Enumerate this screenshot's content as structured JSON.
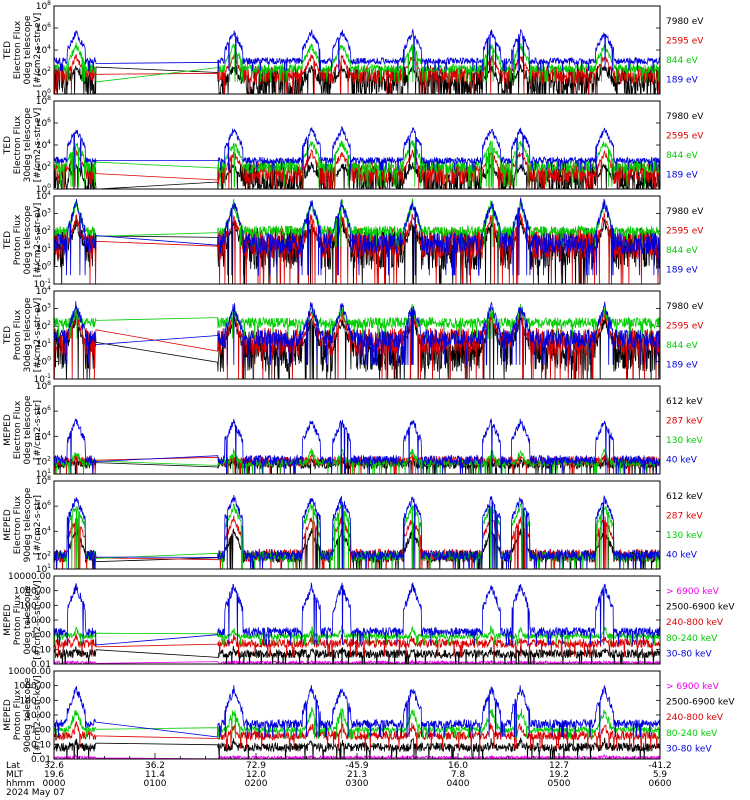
{
  "chart_data": {
    "type": "line",
    "x_tick_groups": {
      "labels": [
        "Lat",
        "MLT",
        "hhmm",
        "2024 May 07"
      ],
      "columns": [
        {
          "Lat": "32.6",
          "MLT": "19.6",
          "hhmm": "0000"
        },
        {
          "Lat": "36.2",
          "MLT": "11.4",
          "hhmm": "0100"
        },
        {
          "Lat": "72.9",
          "MLT": "12.0",
          "hhmm": "0200"
        },
        {
          "Lat": "-45.9",
          "MLT": "21.3",
          "hhmm": "0300"
        },
        {
          "Lat": "16.0",
          "MLT": "7.8",
          "hhmm": "0400"
        },
        {
          "Lat": "12.7",
          "MLT": "19.2",
          "hhmm": "0500"
        },
        {
          "Lat": "-41.2",
          "MLT": "5.9",
          "hhmm": "0600"
        }
      ]
    },
    "xlim_hours": [
      0,
      6
    ],
    "data_gap_hours": [
      0.42,
      1.62
    ],
    "panels": [
      {
        "ylabel": [
          "TED",
          "Electron Flux",
          "0deg telescope",
          "[#/cm2-s-str-eV]"
        ],
        "yscale": "log",
        "ylim_exp": [
          0,
          8
        ],
        "tick_exps": [
          0,
          2,
          4,
          6,
          8
        ],
        "series": [
          {
            "name": "7980 eV",
            "color": "#000000",
            "level": 1.0,
            "spread": 1.6,
            "peak": 2.4
          },
          {
            "name": "2595 eV",
            "color": "#dd0000",
            "level": 1.7,
            "spread": 0.8,
            "peak": 3.4
          },
          {
            "name": "844 eV",
            "color": "#00cc00",
            "level": 2.3,
            "spread": 0.4,
            "peak": 4.4
          },
          {
            "name": "189 eV",
            "color": "#0000dd",
            "level": 3.0,
            "spread": 0.3,
            "peak": 5.6
          }
        ]
      },
      {
        "ylabel": [
          "TED",
          "Electron Flux",
          "30deg telescope",
          "[#/cm2-s-str-eV]"
        ],
        "yscale": "log",
        "ylim_exp": [
          0,
          8
        ],
        "tick_exps": [
          0,
          2,
          4,
          6,
          8
        ],
        "series": [
          {
            "name": "7980 eV",
            "color": "#000000",
            "level": 0.8,
            "spread": 1.5,
            "peak": 2.2
          },
          {
            "name": "2595 eV",
            "color": "#dd0000",
            "level": 1.4,
            "spread": 1.0,
            "peak": 3.3
          },
          {
            "name": "844 eV",
            "color": "#00cc00",
            "level": 2.0,
            "spread": 0.6,
            "peak": 4.2
          },
          {
            "name": "189 eV",
            "color": "#0000dd",
            "level": 2.6,
            "spread": 0.3,
            "peak": 5.4
          }
        ]
      },
      {
        "ylabel": [
          "TED",
          "Proton Flux",
          "0deg telescope",
          "[#/cm2-s-str-eV]"
        ],
        "yscale": "log",
        "ylim_exp": [
          -1,
          4
        ],
        "tick_exps": [
          -1,
          0,
          1,
          2,
          3,
          4
        ],
        "series": [
          {
            "name": "7980 eV",
            "color": "#000000",
            "level": 1.0,
            "spread": 1.2,
            "peak": 2.5
          },
          {
            "name": "2595 eV",
            "color": "#dd0000",
            "level": 1.3,
            "spread": 0.9,
            "peak": 2.8
          },
          {
            "name": "844 eV",
            "color": "#00cc00",
            "level": 2.0,
            "spread": 0.3,
            "peak": 3.6
          },
          {
            "name": "189 eV",
            "color": "#0000dd",
            "level": 1.3,
            "spread": 0.6,
            "peak": 3.6
          }
        ]
      },
      {
        "ylabel": [
          "TED",
          "Proton Flux",
          "30deg telescope",
          "[#/cm2-s-str-eV]"
        ],
        "yscale": "log",
        "ylim_exp": [
          -1,
          4
        ],
        "tick_exps": [
          -1,
          0,
          1,
          2,
          3,
          4
        ],
        "series": [
          {
            "name": "7980 eV",
            "color": "#000000",
            "level": 0.6,
            "spread": 1.2,
            "peak": 2.4
          },
          {
            "name": "2595 eV",
            "color": "#dd0000",
            "level": 1.1,
            "spread": 0.8,
            "peak": 2.7
          },
          {
            "name": "844 eV",
            "color": "#00cc00",
            "level": 2.2,
            "spread": 0.3,
            "peak": 3.0
          },
          {
            "name": "189 eV",
            "color": "#0000dd",
            "level": 1.3,
            "spread": 0.5,
            "peak": 3.2
          }
        ]
      },
      {
        "ylabel": [
          "MEPED",
          "Electron Flux",
          "0deg telescope",
          "[#/cm2-s-str]"
        ],
        "yscale": "log",
        "ylim_exp": [
          1,
          8
        ],
        "tick_exps": [
          1,
          2,
          4,
          6,
          8
        ],
        "series": [
          {
            "name": "612 keV",
            "color": "#000000",
            "level": 1.8,
            "spread": 0.4,
            "peak": 2.0
          },
          {
            "name": "287 keV",
            "color": "#dd0000",
            "level": 2.0,
            "spread": 0.4,
            "peak": 2.4
          },
          {
            "name": "130 keV",
            "color": "#00cc00",
            "level": 1.9,
            "spread": 0.3,
            "peak": 2.8
          },
          {
            "name": "40 keV",
            "color": "#0000dd",
            "level": 2.1,
            "spread": 0.4,
            "peak": 5.2
          }
        ]
      },
      {
        "ylabel": [
          "MEPED",
          "Electron Flux",
          "90deg telescope",
          "[#/cm2-s-str]"
        ],
        "yscale": "log",
        "ylim_exp": [
          1,
          8
        ],
        "tick_exps": [
          1,
          2,
          4,
          6,
          8
        ],
        "series": [
          {
            "name": "612 keV",
            "color": "#000000",
            "level": 2.0,
            "spread": 0.5,
            "peak": 4.0
          },
          {
            "name": "287 keV",
            "color": "#dd0000",
            "level": 2.1,
            "spread": 0.5,
            "peak": 5.0
          },
          {
            "name": "130 keV",
            "color": "#00cc00",
            "level": 2.0,
            "spread": 0.4,
            "peak": 6.0
          },
          {
            "name": "40 keV",
            "color": "#0000dd",
            "level": 2.1,
            "spread": 0.4,
            "peak": 6.6
          }
        ]
      },
      {
        "ylabel": [
          "MEPED",
          "Proton Flux",
          "0deg telescope",
          "[#/cm2-s-str-keV]"
        ],
        "yscale": "log",
        "ylim_exp": [
          -2,
          4
        ],
        "tick_exps": [
          -2,
          -1,
          0,
          1,
          2,
          3,
          4
        ],
        "tick_labels": [
          "0.01",
          "0.10",
          "1.00",
          "10.00",
          "100.00",
          "1000.00",
          "10000.00"
        ],
        "series": [
          {
            "name": "> 6900 keV",
            "color": "#ee00ee",
            "level": -1.9,
            "spread": 0.1,
            "peak": -1.9
          },
          {
            "name": "2500-6900 keV",
            "color": "#000000",
            "level": -1.3,
            "spread": 0.3,
            "peak": -1.0
          },
          {
            "name": "240-800 keV",
            "color": "#dd0000",
            "level": -0.6,
            "spread": 0.3,
            "peak": -0.2
          },
          {
            "name": "80-240 keV",
            "color": "#00cc00",
            "level": -0.1,
            "spread": 0.2,
            "peak": 0.4
          },
          {
            "name": "30-80 keV",
            "color": "#0000dd",
            "level": 0.2,
            "spread": 0.3,
            "peak": 3.3
          }
        ]
      },
      {
        "ylabel": [
          "MEPED",
          "Proton Flux",
          "90deg telescope",
          "[#/cm2-s-str-keV]"
        ],
        "yscale": "log",
        "ylim_exp": [
          -2,
          4
        ],
        "tick_exps": [
          -2,
          -1,
          0,
          1,
          2,
          3,
          4
        ],
        "tick_labels": [
          "0.01",
          "0.10",
          "1.00",
          "10.00",
          "100.00",
          "1000.00",
          "10000.00"
        ],
        "series": [
          {
            "name": "> 6900 keV",
            "color": "#ee00ee",
            "level": -1.9,
            "spread": 0.1,
            "peak": -1.9
          },
          {
            "name": "2500-6900 keV",
            "color": "#000000",
            "level": -1.2,
            "spread": 0.3,
            "peak": -0.8
          },
          {
            "name": "240-800 keV",
            "color": "#dd0000",
            "level": -0.4,
            "spread": 0.3,
            "peak": 0.3
          },
          {
            "name": "80-240 keV",
            "color": "#00cc00",
            "level": 0.0,
            "spread": 0.2,
            "peak": 1.3
          },
          {
            "name": "30-80 keV",
            "color": "#0000dd",
            "level": 0.4,
            "spread": 0.3,
            "peak": 2.8
          }
        ]
      }
    ]
  }
}
